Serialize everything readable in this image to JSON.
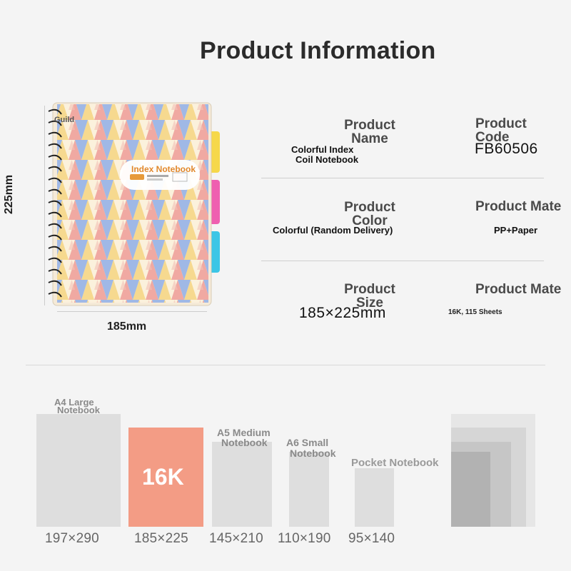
{
  "title": "Product Information",
  "notebook": {
    "cover_title": "Index Notebook",
    "corner_text": "Guild",
    "height_label": "225mm",
    "width_label": "185mm",
    "tab_colors": [
      "#f6d84a",
      "#ef5fb0",
      "#3cc6e6"
    ]
  },
  "info": {
    "name_heading": "Product Name",
    "name_value_1": "Colorful Index",
    "name_value_2": "Coil Notebook",
    "code_heading": "Product Code",
    "code_value": "FB60506",
    "color_heading": "Product Color",
    "color_value": "Colorful (Random Delivery)",
    "material_heading_1": "Product Mate",
    "material_value": "PP+Paper",
    "size_heading": "Product Size",
    "size_value": "185×225mm",
    "material_heading_2": "Product Mate",
    "material_value_2": "16K, 115 Sheets"
  },
  "comparison": {
    "a4_label_1": "A4 Large",
    "a4_label_2": "Notebook",
    "a5_label_1": "A5 Medium",
    "a5_label_2": "Notebook",
    "a6_label_1": "A6 Small",
    "a6_label_2": "Notebook",
    "pocket_label": "Pocket Notebook",
    "highlight_label": "16K",
    "highlight_color": "#f39c85",
    "sizes": [
      "197×290",
      "185×225",
      "145×210",
      "110×190",
      "95×140"
    ]
  }
}
